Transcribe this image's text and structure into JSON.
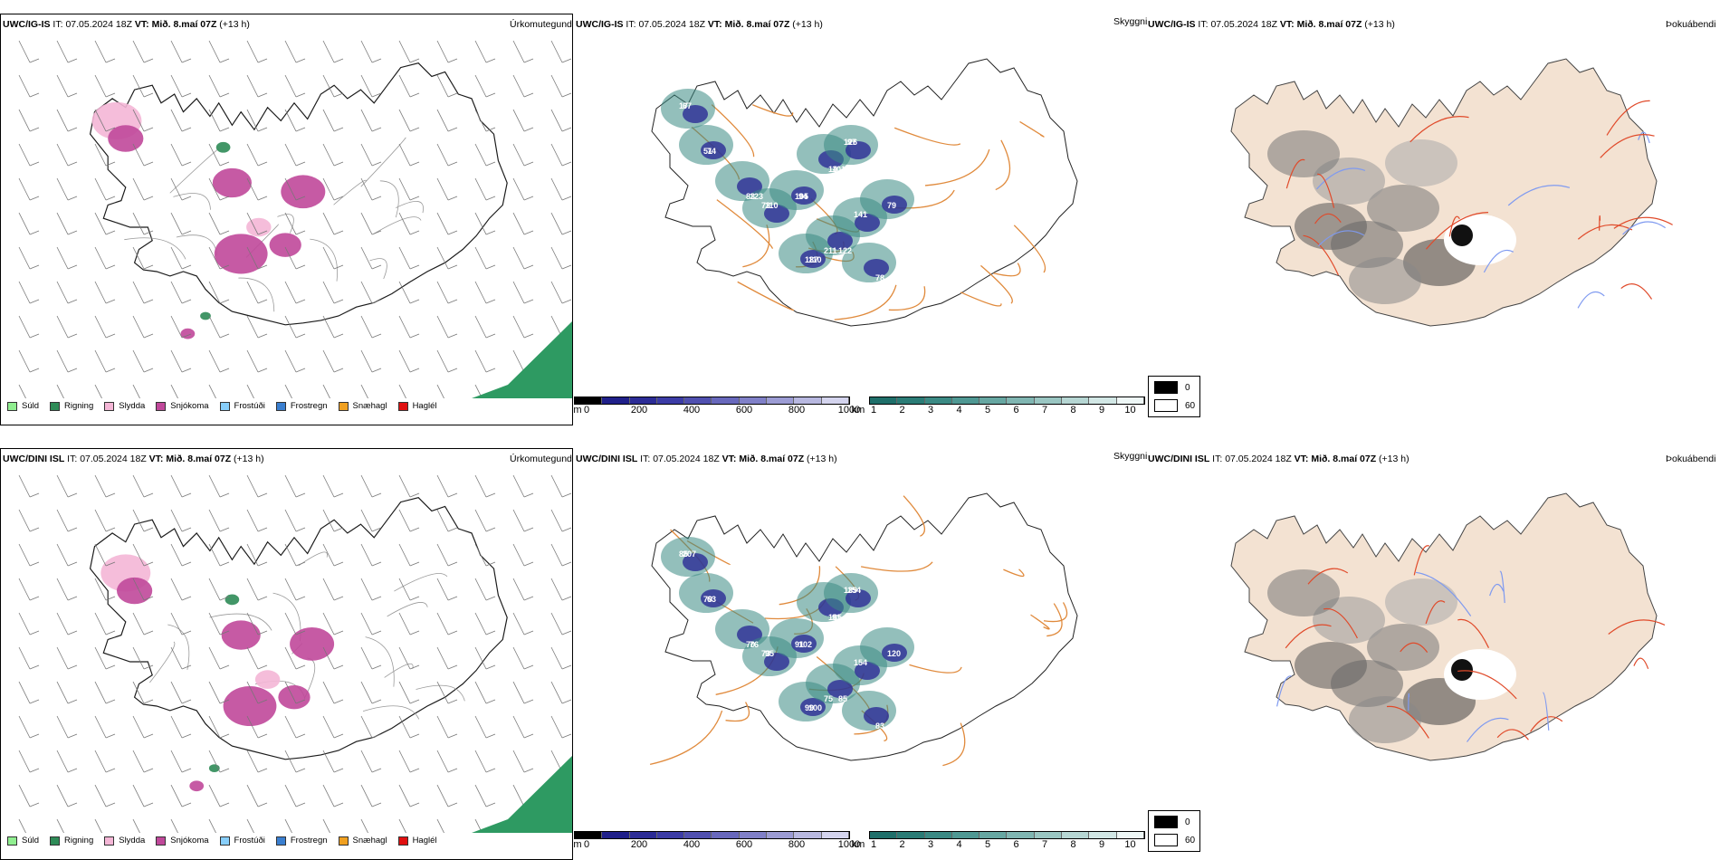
{
  "rows": [
    {
      "model": "UWC/IG-IS",
      "it_label": "IT:",
      "it_value": "07.05.2024 18Z",
      "vt_label": "VT:",
      "vt_value": "Mið. 8.maí 07Z",
      "lead": "(+13 h)",
      "labels": [
        "17",
        "51",
        "83",
        "73",
        "105",
        "14",
        "126",
        "187",
        "122",
        "141",
        "79",
        "78",
        "67",
        "74",
        "123",
        "110",
        "94",
        "101",
        "97",
        "110",
        "211"
      ]
    },
    {
      "model": "UWC/DINI ISL",
      "it_label": "IT:",
      "it_value": "07.05.2024 18Z",
      "vt_label": "VT:",
      "vt_value": "Mið. 8.maí 07Z",
      "lead": "(+13 h)",
      "labels": [
        "85",
        "79",
        "70",
        "73",
        "91",
        "185",
        "139",
        "99",
        "85",
        "154",
        "120",
        "83",
        "207",
        "63",
        "76",
        "95",
        "102",
        "91",
        "154",
        "100",
        "75"
      ]
    }
  ],
  "panel_titles": {
    "precip": "Úrkomutegund",
    "cloud": "Skyggni",
    "dew": "Þokuábendi"
  },
  "precip_legend": [
    {
      "label": "Súld",
      "color": "#90ee90"
    },
    {
      "label": "Rigning",
      "color": "#2e8b57"
    },
    {
      "label": "Slydda",
      "color": "#f4b6d6"
    },
    {
      "label": "Snjókoma",
      "color": "#c0489a"
    },
    {
      "label": "Frostúði",
      "color": "#87cefa"
    },
    {
      "label": "Frostregn",
      "color": "#3a7fd0"
    },
    {
      "label": "Snæhagl",
      "color": "#f0a020"
    },
    {
      "label": "Haglél",
      "color": "#e01010"
    }
  ],
  "cloud_scale": {
    "m_unit": "m",
    "m_ticks": [
      "0",
      "200",
      "400",
      "600",
      "800",
      "1000"
    ],
    "km_unit": "km",
    "km_ticks": [
      "1",
      "2",
      "3",
      "4",
      "5",
      "6",
      "7",
      "8",
      "9",
      "10"
    ],
    "m_colors": [
      "#000000",
      "#20208a",
      "#2c2c96",
      "#3c3ca6",
      "#5050b0",
      "#6868bc",
      "#8080c8",
      "#9c9cd4",
      "#b8b8e0",
      "#d4d4ee"
    ],
    "km_colors": [
      "#1f6f6a",
      "#2b7c76",
      "#3b8a84",
      "#4f9893",
      "#67a7a2",
      "#80b6b2",
      "#9ac6c2",
      "#b6d6d3",
      "#d2e7e5",
      "#eef7f6"
    ]
  },
  "fog_legend": [
    {
      "label": "0",
      "color": "#000000"
    },
    {
      "label": "60",
      "color": "#ffffff"
    }
  ],
  "colors": {
    "coast": "#1a1a1a",
    "road_orange": "#e08a3c",
    "road_red": "#e04a2a",
    "land_tint": "#f3e2d2",
    "river": "#7f9af0",
    "sea_rain": "#2e9a62"
  }
}
